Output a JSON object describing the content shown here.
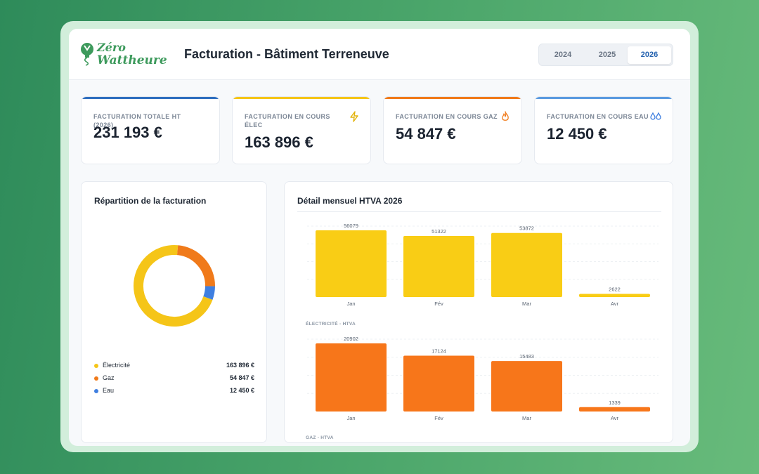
{
  "header": {
    "logo": {
      "line1": "Zéro",
      "line2": "Wattheure"
    },
    "title": "Facturation - Bâtiment Terreneuve",
    "years": [
      {
        "label": "2024",
        "active": false
      },
      {
        "label": "2025",
        "active": false
      },
      {
        "label": "2026",
        "active": true
      }
    ]
  },
  "kpis": [
    {
      "label": "FACTURATION TOTALE HT (2026)",
      "value": "231 193 €",
      "color": "#2f6fbf",
      "icon": ""
    },
    {
      "label": "FACTURATION EN COURS ÉLEC",
      "value": "163 896 €",
      "color": "#f5c518",
      "icon": "lightning-icon"
    },
    {
      "label": "FACTURATION EN COURS GAZ",
      "value": "54 847 €",
      "color": "#f07a1a",
      "icon": "flame-icon"
    },
    {
      "label": "FACTURATION EN COURS EAU",
      "value": "12 450 €",
      "color": "#5b9be0",
      "icon": "water-drops-icon"
    }
  ],
  "repartition": {
    "title": "Répartition de la facturation",
    "legend": [
      {
        "name": "Électricité",
        "amount": "163 896 €",
        "color": "#f5c518"
      },
      {
        "name": "Gaz",
        "amount": "54 847 €",
        "color": "#f07a1a"
      },
      {
        "name": "Eau",
        "amount": "12 450 €",
        "color": "#3f7fe0"
      }
    ]
  },
  "detail": {
    "title": "Détail mensuel HTVA 2026",
    "elec_label": "ÉLECTRICITÉ - HTVA",
    "gaz_label": "GAZ - HTVA"
  },
  "chart_data": [
    {
      "type": "pie",
      "categories": [
        "Électricité",
        "Gaz",
        "Eau"
      ],
      "values": [
        163896,
        54847,
        12450
      ],
      "colors": [
        "#f5c518",
        "#f07a1a",
        "#3f7fe0"
      ]
    },
    {
      "type": "bar",
      "categories": [
        "Jan",
        "Fév",
        "Mar",
        "Avr"
      ],
      "values": [
        56079,
        51322,
        53872,
        2622
      ],
      "xlabel": "ÉLECTRICITÉ - HTVA",
      "color": "#f9cd15",
      "ylim": [
        0,
        56079
      ]
    },
    {
      "type": "bar",
      "categories": [
        "Jan",
        "Fév",
        "Mar",
        "Avr"
      ],
      "values": [
        20902,
        17124,
        15483,
        1339
      ],
      "xlabel": "GAZ - HTVA",
      "color": "#f7761a",
      "ylim": [
        0,
        20902
      ]
    }
  ]
}
